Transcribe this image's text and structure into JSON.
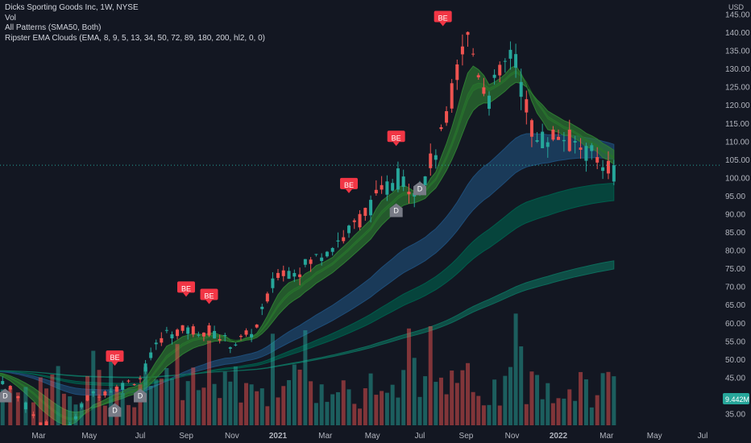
{
  "legend": {
    "title": "Dicks Sporting Goods Inc, 1W, NYSE",
    "vol": "Vol",
    "patterns": "All Patterns (SMA50, Both)",
    "ripster": "Ripster EMA Clouds (EMA, 8, 9, 5, 13, 34, 50, 72, 89, 180, 200, hl2, 0, 0)"
  },
  "currency": "USD",
  "colors": {
    "background": "#131722",
    "up": "#26a69a",
    "down": "#ef5350",
    "text": "#b2b5be",
    "label_be": "#f23645",
    "label_d": "#787b86",
    "cloud_green": "#1b5e20",
    "cloud_blue": "#1e4d78",
    "cloud_teal": "#005c4b"
  },
  "chart_data": {
    "type": "candlestick",
    "title": "Dicks Sporting Goods Inc, 1W, NYSE",
    "x_ticks": [
      "Mar",
      "May",
      "Jul",
      "Sep",
      "Nov",
      "2021",
      "Mar",
      "May",
      "Jul",
      "Sep",
      "Nov",
      "2022",
      "Mar",
      "May",
      "Jul"
    ],
    "y_ticks": [
      35,
      40,
      45,
      50,
      55,
      60,
      65,
      70,
      75,
      80,
      85,
      90,
      95,
      100,
      105,
      110,
      115,
      120,
      125,
      130,
      135,
      140,
      145
    ],
    "ylim": [
      31.5,
      147
    ],
    "last_price": 103.5,
    "last_volume": "9.442M",
    "close_series": [
      {
        "date": "2020-01",
        "close": 47
      },
      {
        "date": "2020-02",
        "close": 44
      },
      {
        "date": "2020-03",
        "close": 33
      },
      {
        "date": "2020-04",
        "close": 30
      },
      {
        "date": "2020-05",
        "close": 40
      },
      {
        "date": "2020-06",
        "close": 42
      },
      {
        "date": "2020-07",
        "close": 45
      },
      {
        "date": "2020-08",
        "close": 57
      },
      {
        "date": "2020-09",
        "close": 58
      },
      {
        "date": "2020-10",
        "close": 58
      },
      {
        "date": "2020-11",
        "close": 54
      },
      {
        "date": "2020-12",
        "close": 58
      },
      {
        "date": "2021-01",
        "close": 74
      },
      {
        "date": "2021-02",
        "close": 75
      },
      {
        "date": "2021-03",
        "close": 80
      },
      {
        "date": "2021-04",
        "close": 85
      },
      {
        "date": "2021-05",
        "close": 93
      },
      {
        "date": "2021-06",
        "close": 100
      },
      {
        "date": "2021-07",
        "close": 97
      },
      {
        "date": "2021-08",
        "close": 112
      },
      {
        "date": "2021-09",
        "close": 140
      },
      {
        "date": "2021-10",
        "close": 122
      },
      {
        "date": "2021-11",
        "close": 135
      },
      {
        "date": "2021-12",
        "close": 110
      },
      {
        "date": "2022-01",
        "close": 112
      },
      {
        "date": "2022-02",
        "close": 108
      },
      {
        "date": "2022-03",
        "close": 103.5
      }
    ],
    "pattern_labels": [
      {
        "text": "BE",
        "date": "2020-06",
        "price": 50.5
      },
      {
        "text": "BE",
        "date": "2020-09",
        "price": 69.5
      },
      {
        "text": "BE",
        "date": "2020-10",
        "price": 67.5
      },
      {
        "text": "BE",
        "date": "2021-04",
        "price": 98
      },
      {
        "text": "BE",
        "date": "2021-06",
        "price": 111
      },
      {
        "text": "BE",
        "date": "2021-08",
        "price": 144
      },
      {
        "text": "D",
        "date": "2020-02",
        "price": 40
      },
      {
        "text": "D",
        "date": "2020-06",
        "price": 36
      },
      {
        "text": "D",
        "date": "2020-07",
        "price": 40
      },
      {
        "text": "D",
        "date": "2021-06",
        "price": 91
      },
      {
        "text": "D",
        "date": "2021-07",
        "price": 97
      }
    ]
  }
}
